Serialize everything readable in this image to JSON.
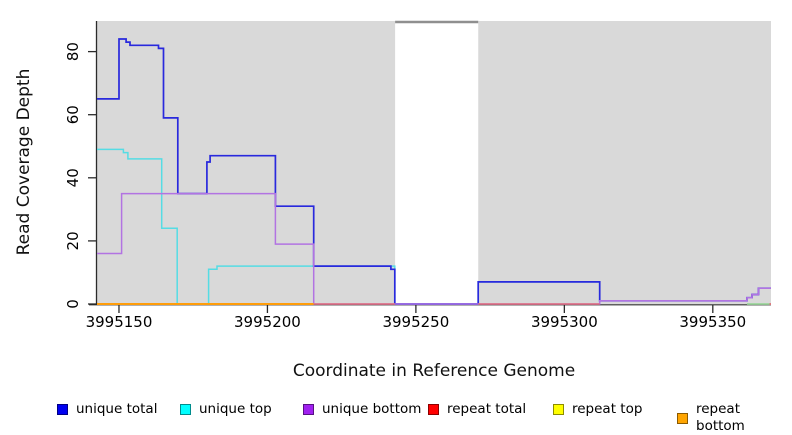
{
  "chart_data": {
    "type": "line",
    "subtype": "step-coverage",
    "title": "",
    "xlabel": "Coordinate in Reference Genome",
    "ylabel": "Read Coverage Depth",
    "x_ticks": [
      3995150,
      3995200,
      3995250,
      3995300,
      3995350
    ],
    "y_ticks": [
      0,
      20,
      40,
      60,
      80
    ],
    "xlim": [
      3995142.6,
      3995369.6
    ],
    "ylim": [
      0,
      89.7
    ],
    "grid": false,
    "plot_bg_color": "#d9d9d9",
    "axis_color": "#2b2b2b",
    "masked_region": {
      "start": 3995243,
      "end": 3995271,
      "fill": "#ffffff",
      "top_border_color": "#8f8f8f"
    },
    "legend_position": "bottom",
    "draw_order": [
      "unique top",
      "unique total",
      "unique bottom",
      "repeat bottom",
      "repeat total",
      "repeat top"
    ],
    "series": [
      {
        "name": "unique total",
        "legend_color": "#0000f0",
        "line_color": "#2929dd",
        "line_width": 1.7,
        "points": [
          [
            3995142.6,
            65
          ],
          [
            3995150.0,
            84
          ],
          [
            3995152.4,
            83
          ],
          [
            3995153.7,
            82
          ],
          [
            3995163.3,
            81
          ],
          [
            3995165.0,
            59
          ],
          [
            3995169.8,
            35
          ],
          [
            3995179.6,
            45
          ],
          [
            3995180.7,
            47
          ],
          [
            3995202.7,
            31
          ],
          [
            3995215.6,
            12
          ],
          [
            3995241.6,
            11
          ],
          [
            3995242.9,
            0
          ],
          [
            3995271.0,
            7
          ],
          [
            3995311.9,
            1
          ],
          [
            3995361.5,
            2
          ],
          [
            3995363.2,
            3
          ],
          [
            3995365.4,
            5
          ]
        ],
        "end": 3995369.6
      },
      {
        "name": "unique top",
        "legend_color": "#00ffff",
        "line_color": "#55dce4",
        "line_width": 1.5,
        "points": [
          [
            3995142.6,
            49
          ],
          [
            3995151.5,
            48
          ],
          [
            3995153.0,
            46
          ],
          [
            3995164.4,
            24
          ],
          [
            3995169.6,
            0
          ],
          [
            3995180.2,
            11
          ],
          [
            3995183.0,
            12
          ],
          [
            3995242.9,
            0
          ],
          [
            3995271.0,
            7
          ],
          [
            3995311.9,
            0
          ]
        ],
        "end": 3995311.9
      },
      {
        "name": "unique bottom",
        "legend_color": "#a020f0",
        "line_color": "#b273e2",
        "line_width": 1.5,
        "points": [
          [
            3995142.6,
            16
          ],
          [
            3995150.9,
            35
          ],
          [
            3995202.7,
            19
          ],
          [
            3995215.6,
            0
          ],
          [
            3995311.9,
            1
          ],
          [
            3995361.5,
            2
          ],
          [
            3995363.2,
            3
          ],
          [
            3995365.4,
            5
          ]
        ],
        "end": 3995369.6
      },
      {
        "name": "repeat total",
        "legend_color": "#ff0000",
        "line_color": "#e4717c",
        "line_width": 1.5,
        "zero_segments": [
          [
            3995215.6,
            3995242.9
          ],
          [
            3995271.0,
            3995311.9
          ]
        ]
      },
      {
        "name": "repeat top",
        "legend_color": "#ffff00",
        "line_color": "#ffff00",
        "line_width": 1.5,
        "zero_segments": []
      },
      {
        "name": "repeat bottom",
        "legend_color": "#ffa500",
        "line_color": "#ff9d0a",
        "line_width": 2.1,
        "points": [
          [
            3995142.6,
            0
          ]
        ],
        "end": 3995215.6
      }
    ],
    "extra_baseline_marks": [
      {
        "color": "#9cd69c",
        "from": 3995361.5,
        "to": 3995369.6
      },
      {
        "color": "#e4717c",
        "from": 3995369.1,
        "to": 3995369.6
      }
    ]
  }
}
